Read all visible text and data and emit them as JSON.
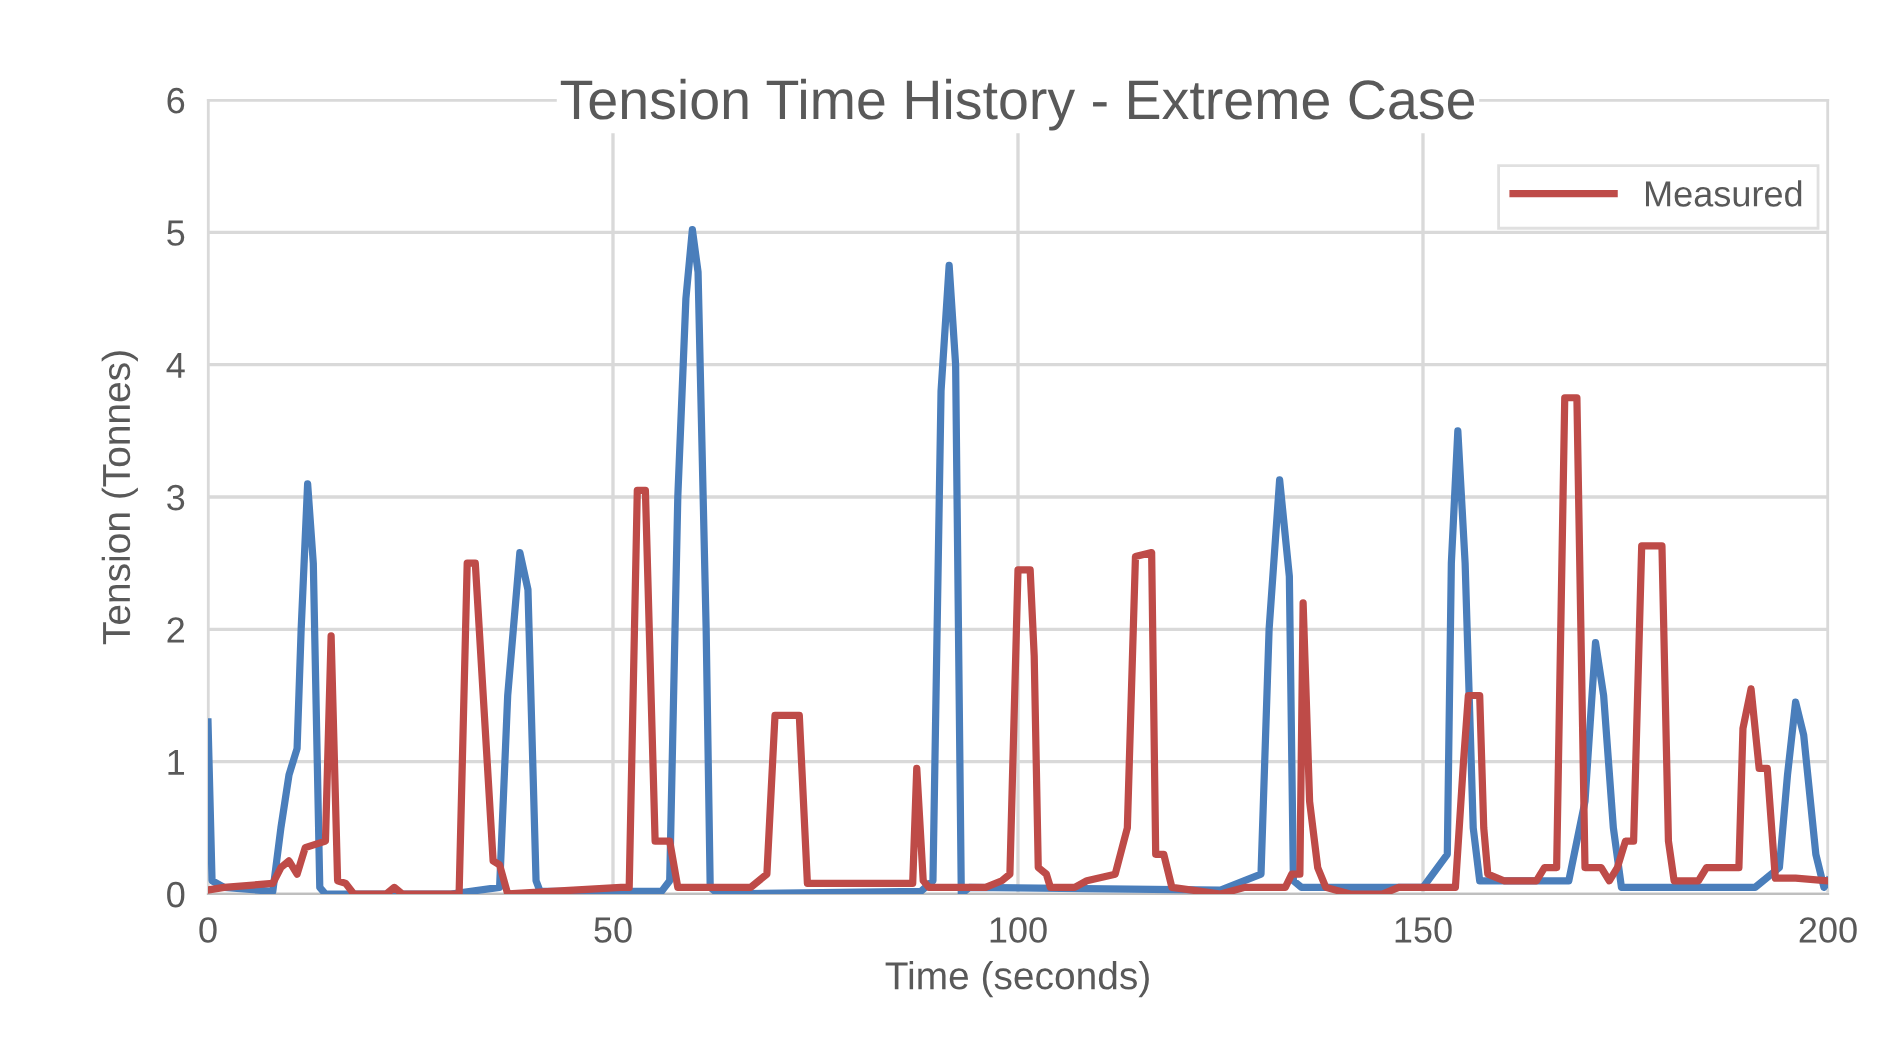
{
  "chart_data": {
    "type": "line",
    "title": "Tension Time History - Extreme Case",
    "xlabel": "Time (seconds)",
    "ylabel": "Tension (Tonnes)",
    "xlim": [
      0,
      200
    ],
    "ylim": [
      0,
      6
    ],
    "xticks": [
      0,
      50,
      100,
      150,
      200
    ],
    "yticks": [
      0,
      1,
      2,
      3,
      4,
      5,
      6
    ],
    "grid": true,
    "legend": "top right",
    "line_style": "solid",
    "marker": "none",
    "series": [
      {
        "color": "#4a7ebb",
        "x": [
          0,
          0.5,
          2,
          8,
          9,
          10,
          11,
          11.5,
          12.3,
          13,
          13.8,
          14.5,
          30,
          36,
          37,
          38.5,
          39.5,
          40.5,
          41,
          56,
          57,
          58,
          59,
          59.8,
          60.5,
          61.5,
          62,
          63,
          88,
          89.5,
          90.5,
          91.5,
          92.3,
          93,
          94,
          125,
          130,
          131,
          132.3,
          133.5,
          134,
          135,
          150,
          153,
          153.5,
          154.3,
          155.2,
          156.2,
          157,
          168,
          170,
          171.3,
          172.3,
          173.5,
          174.5,
          191,
          194,
          195,
          196,
          197,
          198.5,
          199.5,
          200
        ],
        "values": [
          1.3,
          0.1,
          0.05,
          0.02,
          0.5,
          0.9,
          1.1,
          2,
          3.1,
          2.5,
          0.05,
          0,
          0,
          0.05,
          1.5,
          2.58,
          2.3,
          0.1,
          0.02,
          0.02,
          0.1,
          3,
          4.5,
          5.02,
          4.7,
          2,
          0.05,
          0,
          0.02,
          0.1,
          3.8,
          4.75,
          4,
          0,
          0.05,
          0.03,
          0.15,
          2,
          3.13,
          2.4,
          0.1,
          0.05,
          0.05,
          0.3,
          2.5,
          3.5,
          2.5,
          0.5,
          0.1,
          0.1,
          0.7,
          1.9,
          1.5,
          0.5,
          0.05,
          0.05,
          0.2,
          0.9,
          1.45,
          1.2,
          0.3,
          0.05,
          0.1
        ]
      },
      {
        "name": "Measured",
        "color": "#be4b48",
        "x": [
          0,
          2,
          8,
          9,
          10,
          11,
          12,
          14.5,
          15.2,
          16,
          17,
          18,
          22,
          23,
          24,
          31,
          32,
          33,
          35.2,
          36,
          37,
          51,
          52,
          53,
          54,
          55.2,
          57,
          58,
          67,
          69,
          70,
          73,
          74,
          87,
          87.5,
          88.3,
          89,
          96,
          98,
          99,
          100,
          101.5,
          102,
          102.5,
          103.5,
          104,
          107,
          108.5,
          112,
          113.5,
          114.5,
          116.5,
          117,
          118,
          119,
          125,
          128,
          133,
          133.8,
          134.8,
          135.2,
          136,
          137,
          138,
          141,
          145,
          147,
          154,
          155,
          155.6,
          157,
          157.5,
          158,
          160,
          164,
          165,
          166.5,
          167.5,
          169,
          170,
          172,
          173,
          174,
          175,
          176,
          177,
          179.5,
          180.3,
          181,
          184,
          185,
          189,
          189.5,
          190.5,
          191.5,
          192.5,
          193.5,
          196,
          200
        ],
        "values": [
          0.03,
          0.05,
          0.08,
          0.2,
          0.25,
          0.15,
          0.35,
          0.4,
          1.95,
          0.1,
          0.08,
          0,
          0,
          0.05,
          0,
          0,
          2.5,
          2.5,
          0.25,
          0.22,
          0,
          0.05,
          0.05,
          3.05,
          3.05,
          0.4,
          0.4,
          0.05,
          0.05,
          0.15,
          1.35,
          1.35,
          0.08,
          0.08,
          0.95,
          0.1,
          0.05,
          0.05,
          0.1,
          0.15,
          2.45,
          2.45,
          1.8,
          0.2,
          0.15,
          0.05,
          0.05,
          0.1,
          0.15,
          0.5,
          2.55,
          2.58,
          0.3,
          0.3,
          0.05,
          0,
          0.05,
          0.05,
          0.15,
          0.15,
          2.2,
          0.7,
          0.2,
          0.05,
          0,
          0,
          0.05,
          0.05,
          1,
          1.5,
          1.5,
          0.5,
          0.15,
          0.1,
          0.1,
          0.2,
          0.2,
          3.75,
          3.75,
          0.2,
          0.2,
          0.1,
          0.2,
          0.4,
          0.4,
          2.63,
          2.63,
          0.4,
          0.1,
          0.1,
          0.2,
          0.2,
          1.25,
          1.55,
          0.95,
          0.95,
          0.12,
          0.12,
          0.1
        ]
      }
    ]
  }
}
